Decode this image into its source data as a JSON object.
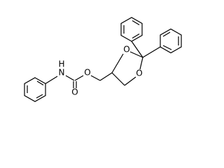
{
  "atoms": [
    {
      "label": "N"
    },
    {
      "label": "H"
    },
    {
      "label": "O"
    },
    {
      "label": "O"
    },
    {
      "label": "O"
    },
    {
      "label": "O"
    }
  ]
}
